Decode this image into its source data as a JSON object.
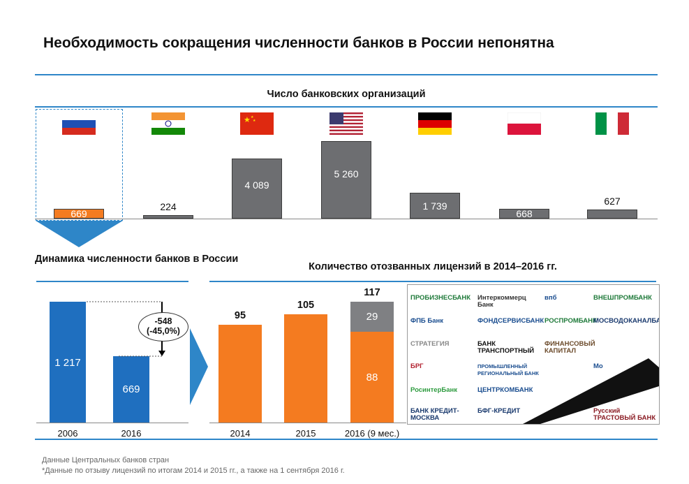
{
  "title": "Необходимость сокращения численности банков в России непонятна",
  "colors": {
    "accent_blue": "#2e86c8",
    "bar_gray": "#6d6e71",
    "bar_orange": "#f47b20",
    "bar_blue": "#1f6fbf"
  },
  "chart_data": [
    {
      "type": "bar",
      "title": "Число банковских организаций",
      "categories": [
        "Россия",
        "Индия",
        "Китай",
        "США",
        "Германия",
        "Польша",
        "Италия"
      ],
      "category_icons": [
        "flag-russia-icon",
        "flag-india-icon",
        "flag-china-icon",
        "flag-usa-icon",
        "flag-germany-icon",
        "flag-poland-icon",
        "flag-italy-icon"
      ],
      "values": [
        669,
        224,
        4089,
        5260,
        1739,
        668,
        627
      ],
      "value_labels": [
        "669",
        "224",
        "4 089",
        "5 260",
        "1 739",
        "668",
        "627"
      ],
      "highlight": "Россия"
    },
    {
      "type": "bar",
      "title": "Динамика численности банков в России",
      "categories": [
        "2006",
        "2016"
      ],
      "values": [
        1217,
        669
      ],
      "value_labels": [
        "1 217",
        "669"
      ],
      "annotation": [
        "-548",
        "(-45,0%)"
      ]
    },
    {
      "type": "bar",
      "stacked": true,
      "title": "Количество отозванных лицензий в 2014–2016 гг.",
      "categories": [
        "2014",
        "2015",
        "2016 (9 мес.)"
      ],
      "series": [
        {
          "values": [
            95,
            105,
            88
          ],
          "value_labels": [
            "",
            "",
            "88"
          ]
        },
        {
          "values": [
            0,
            0,
            29
          ],
          "value_labels": [
            "",
            "",
            "29"
          ]
        }
      ],
      "totals": [
        "95",
        "105",
        "117"
      ]
    }
  ],
  "logos": [
    "ПРОБИЗНЕСБАНК",
    "Интеркоммерц Банк",
    "впб",
    "ВНЕШПРОМБАНК",
    "ФПБ Банк",
    "ФОНДСЕРВИСБАНК",
    "РОСПРОМБАНК",
    "МОСВОДОКАНАЛБАНК",
    "СТРАТЕГИЯ",
    "БАНК ТРАНСПОРТНЫЙ",
    "ФИНАНСОВЫЙ КАПИТАЛ",
    "",
    "БРГ",
    "ПРОМЫШЛЕННЫЙ РЕГИОНАЛЬНЫЙ БАНК",
    "",
    "Мо",
    "РосинтерБанк",
    "ЦЕНТРКОМБАНК",
    "",
    "",
    "БАНК КРЕДИТ-МОСКВА",
    "БФГ-КРЕДИТ",
    "",
    "Русский ТРАСТОВЫЙ БАНК"
  ],
  "footnotes": [
    "Данные Центральных банков стран",
    "*Данные по отзыву лицензий по итогам 2014 и 2015 гг., а также на 1 сентября 2016 г."
  ]
}
